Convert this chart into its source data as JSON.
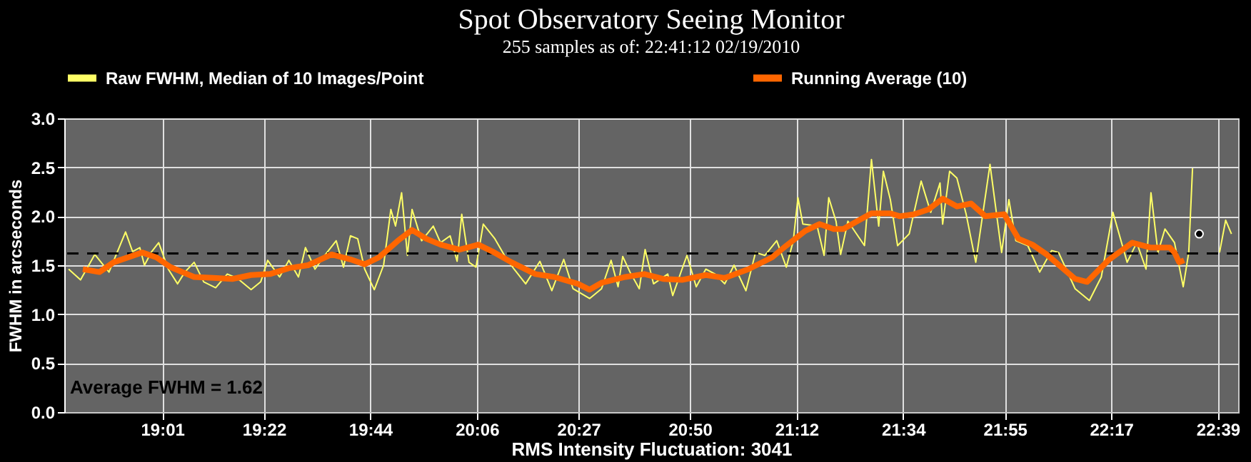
{
  "chart_data": {
    "type": "line",
    "title": "Spot Observatory Seeing Monitor",
    "subtitle": "255 samples as of: 22:41:12 02/19/2010",
    "xlabel": "RMS Intensity Fluctuation: 3041",
    "ylabel": "FWHM in arcseconds",
    "xlim": [
      18.68,
      22.72
    ],
    "xticks": [
      {
        "value": 19.017,
        "label": "19:01"
      },
      {
        "value": 19.367,
        "label": "19:22"
      },
      {
        "value": 19.733,
        "label": "19:44"
      },
      {
        "value": 20.1,
        "label": "20:06"
      },
      {
        "value": 20.45,
        "label": "20:27"
      },
      {
        "value": 20.833,
        "label": "20:50"
      },
      {
        "value": 21.2,
        "label": "21:12"
      },
      {
        "value": 21.567,
        "label": "21:34"
      },
      {
        "value": 21.917,
        "label": "21:55"
      },
      {
        "value": 22.283,
        "label": "22:17"
      },
      {
        "value": 22.65,
        "label": "22:39"
      }
    ],
    "ylim": [
      0,
      3
    ],
    "yticks": [
      {
        "value": 0,
        "label": "0.0"
      },
      {
        "value": 0.5,
        "label": "0.5"
      },
      {
        "value": 1,
        "label": "1.0"
      },
      {
        "value": 1.5,
        "label": "1.5"
      },
      {
        "value": 2,
        "label": "2.0"
      },
      {
        "value": 2.5,
        "label": "2.5"
      },
      {
        "value": 3,
        "label": "3.0"
      }
    ],
    "grid": true,
    "legend": "top",
    "series": [
      {
        "name": "Raw FWHM, Median of 10 Images/Point",
        "color": "#ffff66",
        "x": [
          18.695,
          18.736,
          18.785,
          18.834,
          18.891,
          18.915,
          18.94,
          18.956,
          18.981,
          19.005,
          19.038,
          19.07,
          19.095,
          19.127,
          19.16,
          19.201,
          19.241,
          19.274,
          19.323,
          19.356,
          19.38,
          19.421,
          19.453,
          19.486,
          19.51,
          19.543,
          19.576,
          19.616,
          19.641,
          19.665,
          19.69,
          19.714,
          19.747,
          19.779,
          19.804,
          19.82,
          19.841,
          19.861,
          19.877,
          19.91,
          19.95,
          19.975,
          20.008,
          20.032,
          20.048,
          20.073,
          20.097,
          20.122,
          20.162,
          20.195,
          20.228,
          20.268,
          20.317,
          20.358,
          20.399,
          20.431,
          20.488,
          20.529,
          20.562,
          20.586,
          20.602,
          20.627,
          20.659,
          20.679,
          20.708,
          20.757,
          20.774,
          20.806,
          20.823,
          20.855,
          20.888,
          20.92,
          20.953,
          20.985,
          21.026,
          21.059,
          21.091,
          21.132,
          21.165,
          21.189,
          21.205,
          21.222,
          21.271,
          21.295,
          21.311,
          21.336,
          21.352,
          21.377,
          21.434,
          21.458,
          21.483,
          21.499,
          21.523,
          21.548,
          21.588,
          21.629,
          21.662,
          21.694,
          21.703,
          21.727,
          21.752,
          21.784,
          21.817,
          21.866,
          21.906,
          21.931,
          21.955,
          21.996,
          22.037,
          22.078,
          22.102,
          22.159,
          22.208,
          22.249,
          22.289,
          22.338,
          22.371,
          22.403,
          22.42,
          22.444,
          22.468,
          22.501,
          22.531,
          22.55,
          22.563,
          22.6,
          22.656,
          22.677,
          22.697
        ],
        "values": [
          1.46,
          1.35,
          1.61,
          1.43,
          1.84,
          1.64,
          1.68,
          1.5,
          1.64,
          1.73,
          1.46,
          1.31,
          1.43,
          1.53,
          1.33,
          1.27,
          1.41,
          1.37,
          1.25,
          1.33,
          1.55,
          1.38,
          1.55,
          1.38,
          1.68,
          1.46,
          1.6,
          1.75,
          1.48,
          1.8,
          1.77,
          1.46,
          1.25,
          1.5,
          2.07,
          1.9,
          2.24,
          1.6,
          2.07,
          1.75,
          1.9,
          1.73,
          1.8,
          1.54,
          2.02,
          1.53,
          1.48,
          1.92,
          1.77,
          1.6,
          1.46,
          1.31,
          1.54,
          1.24,
          1.56,
          1.26,
          1.16,
          1.26,
          1.55,
          1.28,
          1.59,
          1.43,
          1.26,
          1.66,
          1.31,
          1.41,
          1.19,
          1.46,
          1.6,
          1.28,
          1.46,
          1.41,
          1.31,
          1.5,
          1.24,
          1.63,
          1.6,
          1.75,
          1.48,
          1.75,
          2.19,
          1.92,
          1.9,
          1.6,
          2.19,
          1.95,
          1.61,
          1.95,
          1.7,
          2.58,
          1.9,
          2.46,
          2.17,
          1.7,
          1.82,
          2.36,
          2.04,
          2.34,
          1.92,
          2.46,
          2.39,
          2.02,
          1.53,
          2.53,
          1.63,
          2.17,
          1.75,
          1.7,
          1.43,
          1.65,
          1.63,
          1.26,
          1.14,
          1.38,
          2.04,
          1.53,
          1.73,
          1.46,
          2.24,
          1.63,
          1.87,
          1.73,
          1.28,
          1.63,
          2.49,
          null,
          1.63,
          1.96,
          1.82
        ]
      },
      {
        "name": "Running Average (10)",
        "color": "#ff6600",
        "x": [
          18.744,
          18.801,
          18.85,
          18.948,
          18.997,
          19.046,
          19.127,
          19.193,
          19.258,
          19.323,
          19.388,
          19.453,
          19.519,
          19.6,
          19.665,
          19.714,
          19.763,
          19.828,
          19.877,
          19.926,
          19.975,
          20.04,
          20.105,
          20.154,
          20.219,
          20.301,
          20.366,
          20.448,
          20.488,
          20.529,
          20.611,
          20.676,
          20.741,
          20.806,
          20.888,
          20.953,
          21.035,
          21.116,
          21.165,
          21.23,
          21.279,
          21.328,
          21.361,
          21.409,
          21.458,
          21.523,
          21.556,
          21.605,
          21.654,
          21.703,
          21.752,
          21.801,
          21.85,
          21.915,
          21.964,
          22.012,
          22.061,
          22.159,
          22.2,
          22.273,
          22.355,
          22.42,
          22.485,
          22.501,
          22.517,
          22.534
        ],
        "values": [
          1.46,
          1.43,
          1.53,
          1.63,
          1.58,
          1.48,
          1.38,
          1.37,
          1.36,
          1.4,
          1.41,
          1.47,
          1.5,
          1.61,
          1.56,
          1.51,
          1.58,
          1.75,
          1.86,
          1.77,
          1.71,
          1.66,
          1.71,
          1.64,
          1.53,
          1.41,
          1.38,
          1.31,
          1.25,
          1.32,
          1.38,
          1.41,
          1.36,
          1.35,
          1.4,
          1.37,
          1.46,
          1.58,
          1.7,
          1.85,
          1.92,
          1.87,
          1.87,
          1.95,
          2.03,
          2.03,
          2.0,
          2.02,
          2.07,
          2.18,
          2.1,
          2.13,
          2.0,
          2.02,
          1.77,
          1.71,
          1.61,
          1.36,
          1.33,
          1.55,
          1.73,
          1.68,
          1.68,
          1.63,
          1.53,
          1.55
        ]
      },
      {
        "color": "#000000",
        "type": "scatter",
        "x": [
          22.586
        ],
        "values": [
          1.82
        ]
      }
    ],
    "ref_lines": [
      {
        "axis": "y",
        "value": 1.62,
        "color": "#000000",
        "line_style": "dashed"
      }
    ],
    "annotations": [
      "Average FWHM = 1.62"
    ]
  }
}
